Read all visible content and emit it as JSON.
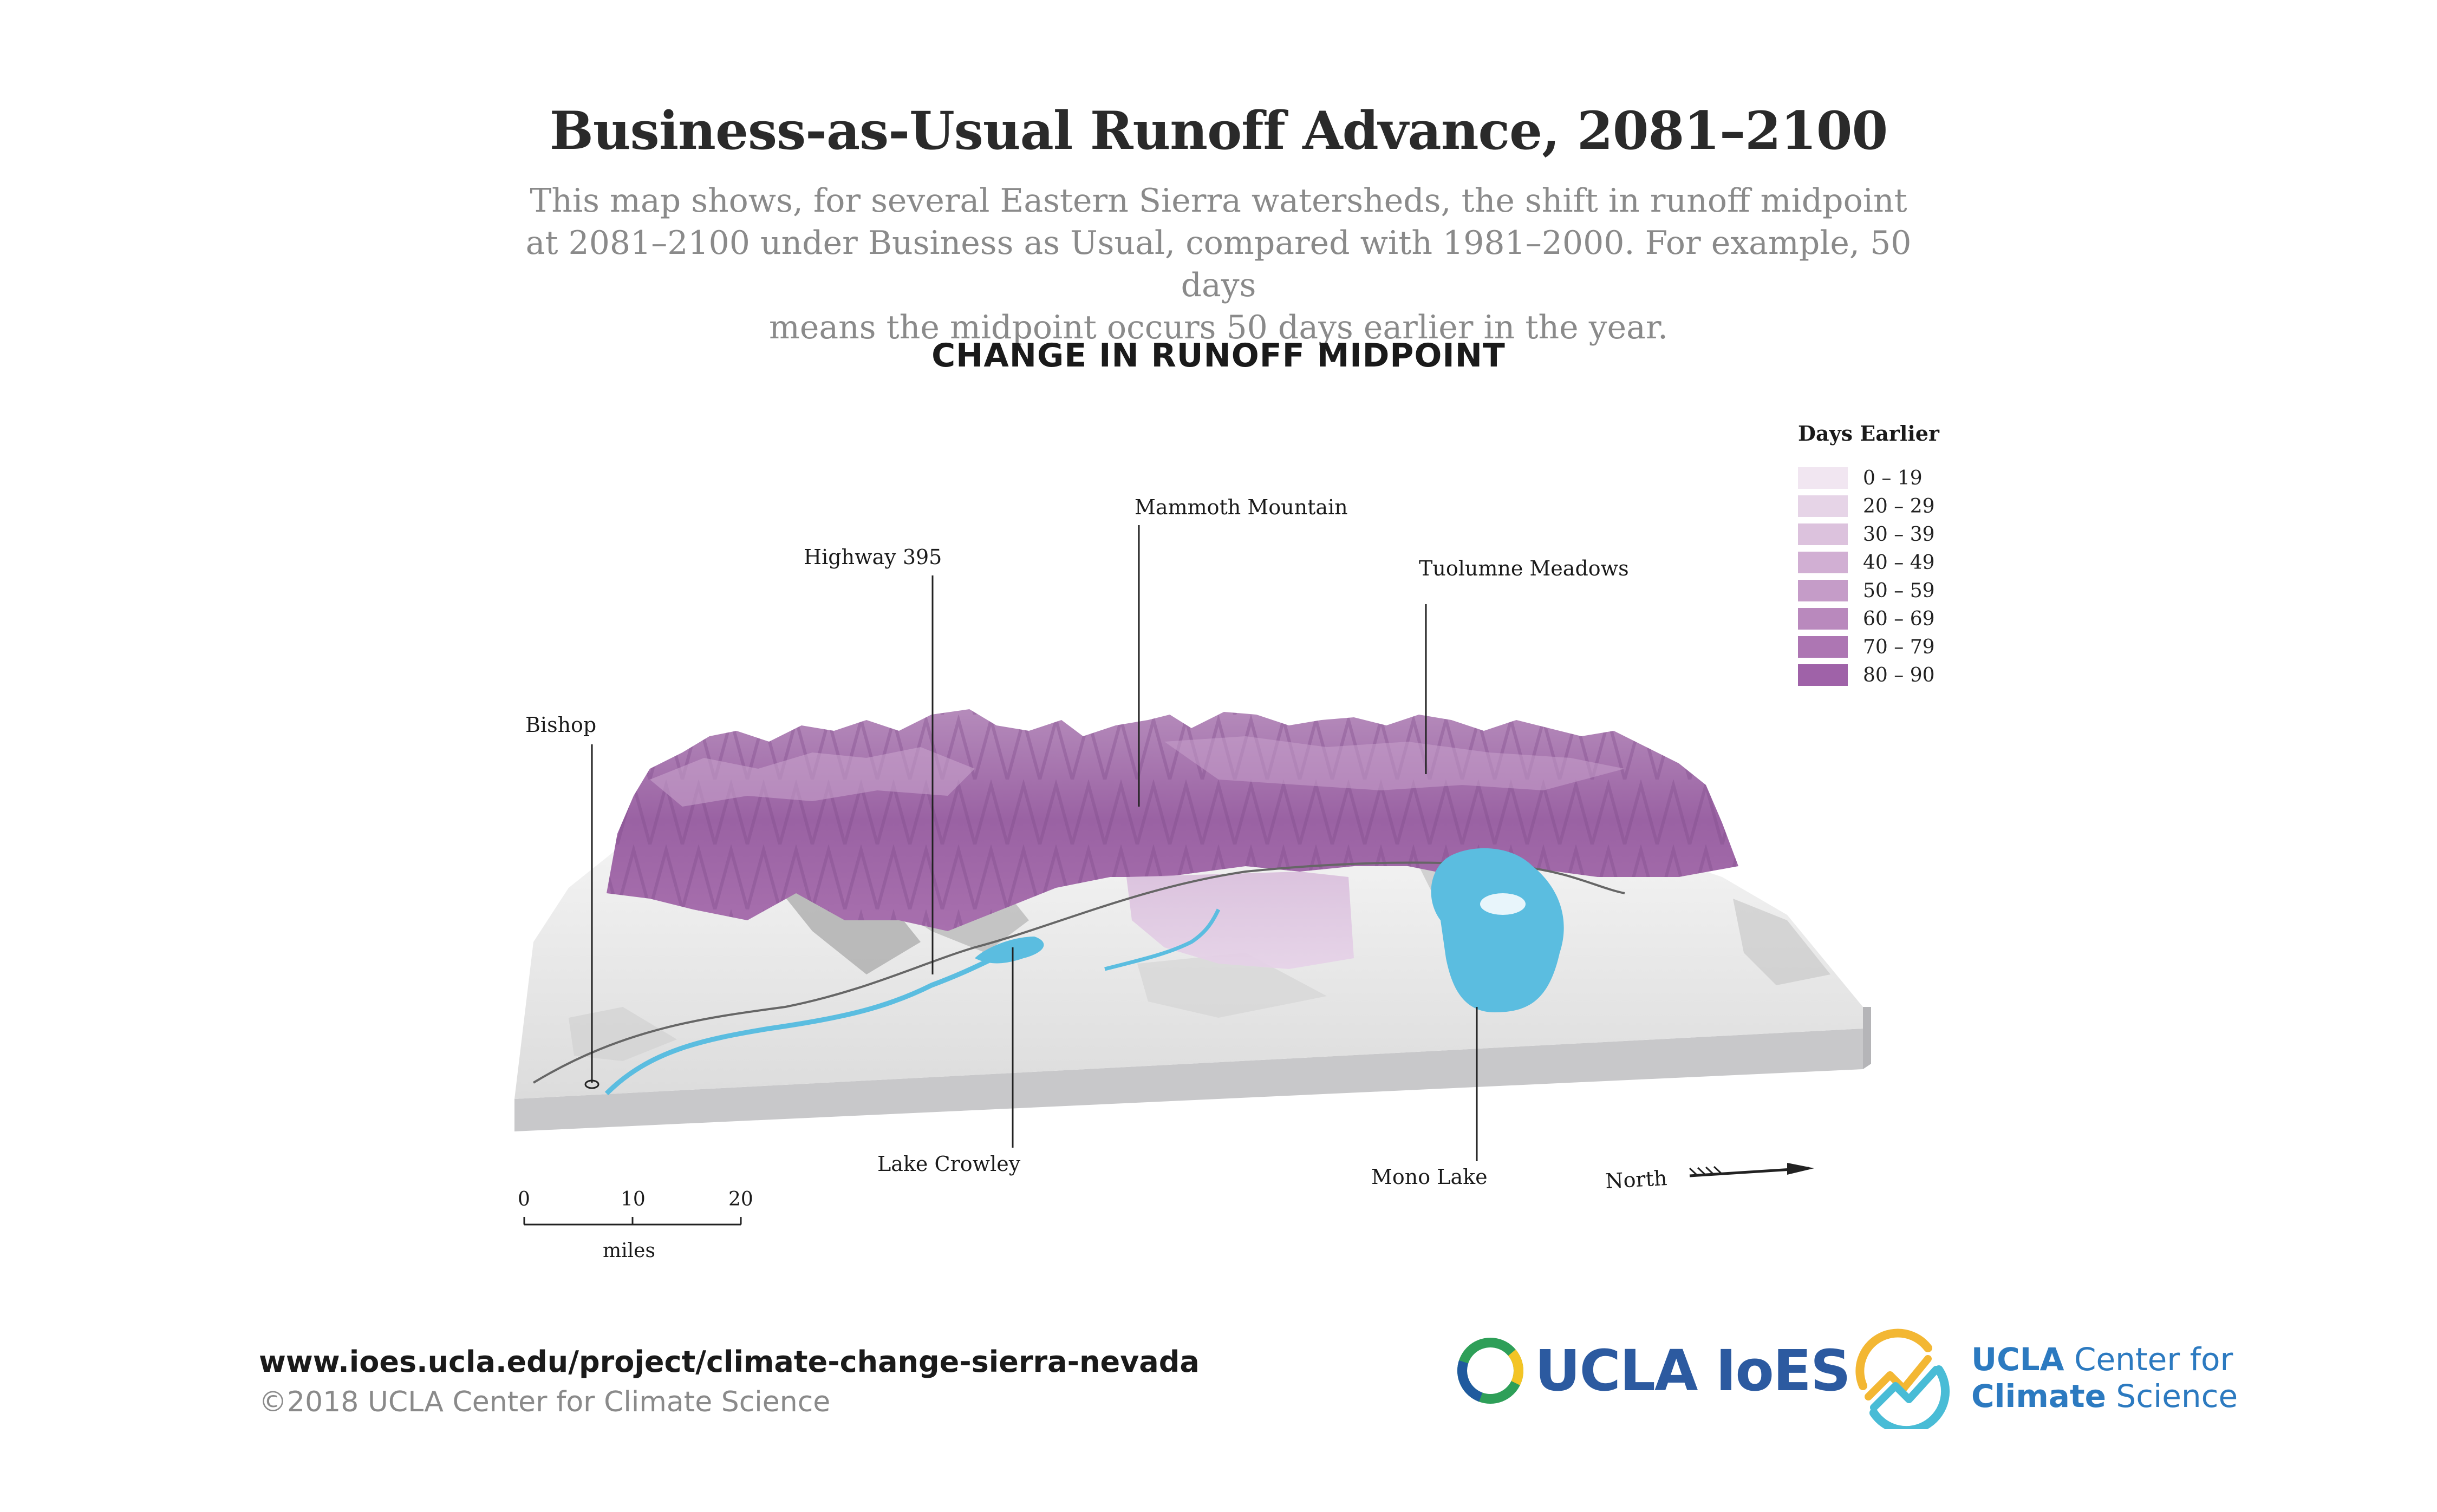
{
  "title": "Business-as-Usual Runoff Advance, 2081–2100",
  "subtitle_lines": [
    "This map shows, for several Eastern Sierra watersheds, the shift in runoff midpoint",
    "at 2081–2100 under Business as Usual, compared with 1981–2000. For example, 50 days",
    "means the midpoint occurs 50 days earlier in the year."
  ],
  "map_heading": "CHANGE IN RUNOFF MIDPOINT",
  "legend": {
    "title": "Days Earlier",
    "items": [
      {
        "label": "0 – 19",
        "color": "#f1e6f1"
      },
      {
        "label": "20 – 29",
        "color": "#e6d4e7"
      },
      {
        "label": "30 – 39",
        "color": "#dcc2dd"
      },
      {
        "label": "40 – 49",
        "color": "#d1afd3"
      },
      {
        "label": "50 – 59",
        "color": "#c59cc8"
      },
      {
        "label": "60 – 69",
        "color": "#b989bd"
      },
      {
        "label": "70 – 79",
        "color": "#ad76b3"
      },
      {
        "label": "80 – 90",
        "color": "#9f62a8"
      }
    ]
  },
  "places": {
    "bishop": "Bishop",
    "highway": "Highway 395",
    "mammoth": "Mammoth Mountain",
    "tuolumne": "Tuolumne Meadows",
    "crowley": "Lake Crowley",
    "mono": "Mono Lake"
  },
  "north_label": "North",
  "scale": {
    "ticks": [
      "0",
      "10",
      "20"
    ],
    "unit": "miles"
  },
  "footer": {
    "url": "www.ioes.ucla.edu/project/climate-change-sierra-nevada",
    "copyright": "©2018 UCLA Center for Climate Science"
  },
  "logos": {
    "ioes_text": "UCLA IoES",
    "ccs_line1_bold": "UCLA",
    "ccs_line1_rest": " Center for",
    "ccs_line2_bold": "Climate",
    "ccs_line2_rest": " Science"
  },
  "colors": {
    "water": "#5bbde0",
    "terrain": "#e9e9e9",
    "terrain_shadow": "#a8a8a8",
    "base": "#c9c9cb",
    "purple_dark": "#9a62a3",
    "purple_light": "#d6b6da"
  }
}
